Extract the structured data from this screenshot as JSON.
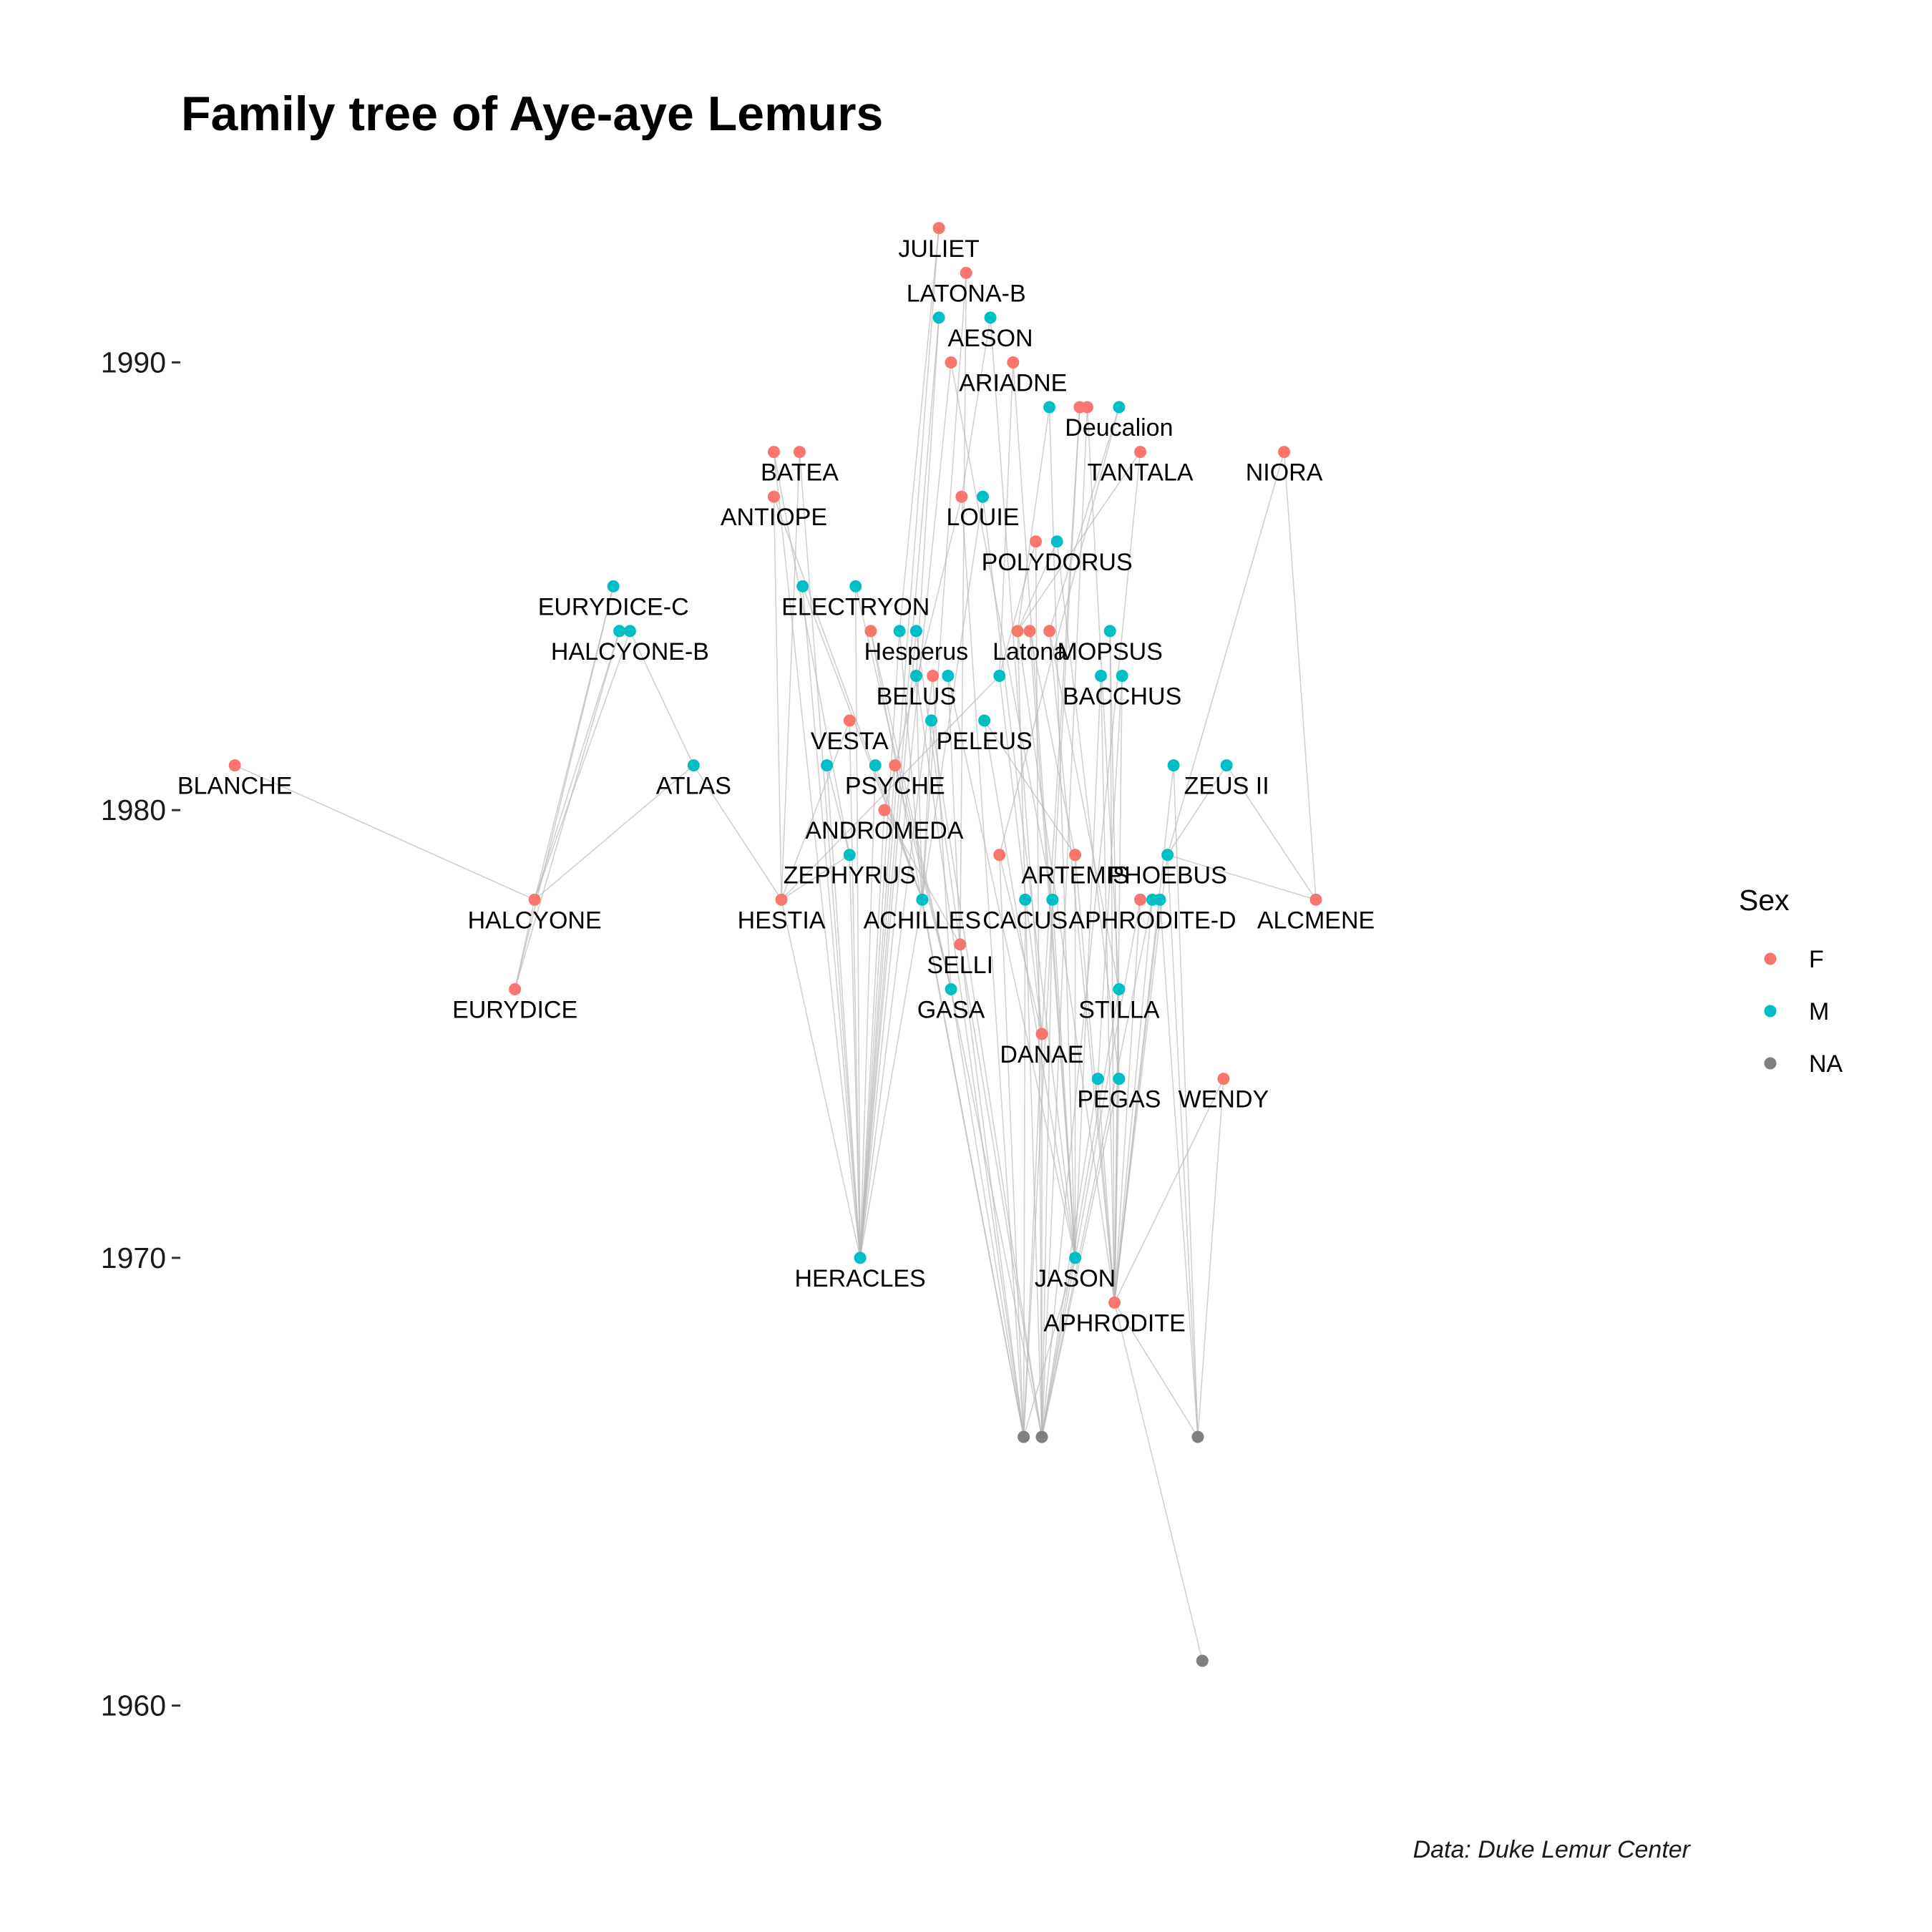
{
  "colors": {
    "F": "#F8766D",
    "M": "#00BFC4",
    "NA": "#7F7F7F"
  },
  "chart_data": {
    "type": "scatter",
    "title": "Family tree of Aye-aye Lemurs",
    "caption": "Data: Duke Lemur Center",
    "ylabel": "",
    "ylim": [
      1957.5,
      1993.3
    ],
    "xlim": [
      0,
      100
    ],
    "y_ticks": [
      1960,
      1970,
      1980,
      1990
    ],
    "legend": {
      "title": "Sex",
      "position": "right",
      "entries": [
        "F",
        "M",
        "NA"
      ]
    },
    "grid": false,
    "nodes": [
      {
        "id": "JULIET",
        "label": "JULIET",
        "sex": "F",
        "x": 50.1,
        "y": 1993
      },
      {
        "id": "LATONA-B",
        "label": "LATONA-B",
        "sex": "F",
        "x": 51.9,
        "y": 1992
      },
      {
        "id": "n_l1",
        "label": "",
        "sex": "M",
        "x": 50.1,
        "y": 1991
      },
      {
        "id": "AESON",
        "label": "AESON",
        "sex": "M",
        "x": 53.5,
        "y": 1991
      },
      {
        "id": "n_a1",
        "label": "",
        "sex": "F",
        "x": 50.9,
        "y": 1990
      },
      {
        "id": "ARIADNE",
        "label": "ARIADNE",
        "sex": "F",
        "x": 55.0,
        "y": 1990
      },
      {
        "id": "n_d1",
        "label": "",
        "sex": "M",
        "x": 57.4,
        "y": 1989
      },
      {
        "id": "n_d2",
        "label": "",
        "sex": "F",
        "x": 59.4,
        "y": 1989
      },
      {
        "id": "n_d3",
        "label": "",
        "sex": "F",
        "x": 59.9,
        "y": 1989
      },
      {
        "id": "Deucalion",
        "label": "Deucalion",
        "sex": "M",
        "x": 62.0,
        "y": 1989
      },
      {
        "id": "n_b1",
        "label": "",
        "sex": "F",
        "x": 39.2,
        "y": 1988
      },
      {
        "id": "BATEA",
        "label": "BATEA",
        "sex": "F",
        "x": 40.9,
        "y": 1988
      },
      {
        "id": "TANTALA",
        "label": "TANTALA",
        "sex": "F",
        "x": 63.4,
        "y": 1988
      },
      {
        "id": "NIORA",
        "label": "NIORA",
        "sex": "F",
        "x": 72.9,
        "y": 1988
      },
      {
        "id": "ANTIOPE",
        "label": "ANTIOPE",
        "sex": "F",
        "x": 39.2,
        "y": 1987
      },
      {
        "id": "n_lo1",
        "label": "",
        "sex": "F",
        "x": 51.6,
        "y": 1987
      },
      {
        "id": "LOUIE",
        "label": "LOUIE",
        "sex": "M",
        "x": 53.0,
        "y": 1987
      },
      {
        "id": "n_p1",
        "label": "",
        "sex": "F",
        "x": 56.5,
        "y": 1986
      },
      {
        "id": "POLYDORUS",
        "label": "POLYDORUS",
        "sex": "M",
        "x": 57.9,
        "y": 1986
      },
      {
        "id": "EURYDICE-C",
        "label": "EURYDICE-C",
        "sex": "M",
        "x": 28.6,
        "y": 1985
      },
      {
        "id": "n_e1",
        "label": "",
        "sex": "M",
        "x": 41.1,
        "y": 1985
      },
      {
        "id": "ELECTRYON",
        "label": "ELECTRYON",
        "sex": "M",
        "x": 44.6,
        "y": 1985
      },
      {
        "id": "n_h1",
        "label": "",
        "sex": "M",
        "x": 29.0,
        "y": 1984
      },
      {
        "id": "HALCYONE-B",
        "label": "HALCYONE-B",
        "sex": "M",
        "x": 29.7,
        "y": 1984
      },
      {
        "id": "n_he1",
        "label": "",
        "sex": "F",
        "x": 45.6,
        "y": 1984
      },
      {
        "id": "n_he2",
        "label": "",
        "sex": "M",
        "x": 47.5,
        "y": 1984
      },
      {
        "id": "Hesperus",
        "label": "Hesperus",
        "sex": "M",
        "x": 48.6,
        "y": 1984
      },
      {
        "id": "n_la1",
        "label": "",
        "sex": "F",
        "x": 55.3,
        "y": 1984
      },
      {
        "id": "Latona",
        "label": "Latona",
        "sex": "F",
        "x": 56.1,
        "y": 1984
      },
      {
        "id": "n_la2",
        "label": "",
        "sex": "F",
        "x": 57.4,
        "y": 1984
      },
      {
        "id": "MOPSUS",
        "label": "MOPSUS",
        "sex": "M",
        "x": 61.4,
        "y": 1984
      },
      {
        "id": "BELUS",
        "label": "BELUS",
        "sex": "M",
        "x": 48.6,
        "y": 1983
      },
      {
        "id": "n_be1",
        "label": "",
        "sex": "F",
        "x": 49.7,
        "y": 1983
      },
      {
        "id": "n_be2",
        "label": "",
        "sex": "M",
        "x": 50.7,
        "y": 1983
      },
      {
        "id": "n_pe0",
        "label": "",
        "sex": "M",
        "x": 54.1,
        "y": 1983
      },
      {
        "id": "n_ba1",
        "label": "",
        "sex": "M",
        "x": 60.8,
        "y": 1983
      },
      {
        "id": "BACCHUS",
        "label": "BACCHUS",
        "sex": "M",
        "x": 62.2,
        "y": 1983
      },
      {
        "id": "VESTA",
        "label": "VESTA",
        "sex": "F",
        "x": 44.2,
        "y": 1982
      },
      {
        "id": "n_pe1",
        "label": "",
        "sex": "M",
        "x": 49.6,
        "y": 1982
      },
      {
        "id": "PELEUS",
        "label": "PELEUS",
        "sex": "M",
        "x": 53.1,
        "y": 1982
      },
      {
        "id": "BLANCHE",
        "label": "BLANCHE",
        "sex": "F",
        "x": 3.6,
        "y": 1981
      },
      {
        "id": "ATLAS",
        "label": "ATLAS",
        "sex": "M",
        "x": 33.9,
        "y": 1981
      },
      {
        "id": "n_ps1",
        "label": "",
        "sex": "M",
        "x": 42.7,
        "y": 1981
      },
      {
        "id": "n_ps2",
        "label": "",
        "sex": "M",
        "x": 45.9,
        "y": 1981
      },
      {
        "id": "PSYCHE",
        "label": "PSYCHE",
        "sex": "F",
        "x": 47.2,
        "y": 1981
      },
      {
        "id": "n_z1",
        "label": "",
        "sex": "M",
        "x": 65.6,
        "y": 1981
      },
      {
        "id": "ZEUS II",
        "label": "ZEUS II",
        "sex": "M",
        "x": 69.1,
        "y": 1981
      },
      {
        "id": "ANDROMEDA",
        "label": "ANDROMEDA",
        "sex": "F",
        "x": 46.5,
        "y": 1980
      },
      {
        "id": "ZEPHYRUS",
        "label": "ZEPHYRUS",
        "sex": "M",
        "x": 44.2,
        "y": 1979
      },
      {
        "id": "n_ar1",
        "label": "",
        "sex": "F",
        "x": 54.1,
        "y": 1979
      },
      {
        "id": "ARTEMIS",
        "label": "ARTEMIS",
        "sex": "F",
        "x": 59.1,
        "y": 1979
      },
      {
        "id": "PHOEBUS",
        "label": "PHOEBUS",
        "sex": "M",
        "x": 65.2,
        "y": 1979
      },
      {
        "id": "HALCYONE",
        "label": "HALCYONE",
        "sex": "F",
        "x": 23.4,
        "y": 1978
      },
      {
        "id": "HESTIA",
        "label": "HESTIA",
        "sex": "F",
        "x": 39.7,
        "y": 1978
      },
      {
        "id": "ACHILLES",
        "label": "ACHILLES",
        "sex": "M",
        "x": 49.0,
        "y": 1978
      },
      {
        "id": "CACUS",
        "label": "CACUS",
        "sex": "M",
        "x": 55.8,
        "y": 1978
      },
      {
        "id": "n_ca1",
        "label": "",
        "sex": "M",
        "x": 57.6,
        "y": 1978
      },
      {
        "id": "n_ap1",
        "label": "",
        "sex": "F",
        "x": 63.4,
        "y": 1978
      },
      {
        "id": "APHRODITE-D",
        "label": "APHRODITE-D",
        "sex": "M",
        "x": 64.2,
        "y": 1978
      },
      {
        "id": "n_ap2",
        "label": "",
        "sex": "M",
        "x": 64.7,
        "y": 1978
      },
      {
        "id": "ALCMENE",
        "label": "ALCMENE",
        "sex": "F",
        "x": 75.0,
        "y": 1978
      },
      {
        "id": "SELLI",
        "label": "SELLI",
        "sex": "F",
        "x": 51.5,
        "y": 1977
      },
      {
        "id": "EURYDICE",
        "label": "EURYDICE",
        "sex": "F",
        "x": 22.1,
        "y": 1976
      },
      {
        "id": "GASA",
        "label": "GASA",
        "sex": "M",
        "x": 50.9,
        "y": 1976
      },
      {
        "id": "STILLA",
        "label": "STILLA",
        "sex": "M",
        "x": 62.0,
        "y": 1976
      },
      {
        "id": "DANAE",
        "label": "DANAE",
        "sex": "F",
        "x": 56.9,
        "y": 1975
      },
      {
        "id": "n_pg1",
        "label": "",
        "sex": "M",
        "x": 60.6,
        "y": 1974
      },
      {
        "id": "PEGAS",
        "label": "PEGAS",
        "sex": "M",
        "x": 62.0,
        "y": 1974
      },
      {
        "id": "WENDY",
        "label": "WENDY",
        "sex": "F",
        "x": 68.9,
        "y": 1974
      },
      {
        "id": "HERACLES",
        "label": "HERACLES",
        "sex": "M",
        "x": 44.9,
        "y": 1970
      },
      {
        "id": "JASON",
        "label": "JASON",
        "sex": "M",
        "x": 59.1,
        "y": 1970
      },
      {
        "id": "APHRODITE",
        "label": "APHRODITE",
        "sex": "F",
        "x": 61.7,
        "y": 1969
      },
      {
        "id": "n_na1",
        "label": "",
        "sex": "NA",
        "x": 55.7,
        "y": 1966
      },
      {
        "id": "n_na2",
        "label": "",
        "sex": "NA",
        "x": 56.9,
        "y": 1966
      },
      {
        "id": "n_na3",
        "label": "",
        "sex": "NA",
        "x": 67.2,
        "y": 1966
      },
      {
        "id": "n_na4",
        "label": "",
        "sex": "NA",
        "x": 67.5,
        "y": 1961
      }
    ],
    "edges": [
      [
        "JULIET",
        "HERACLES"
      ],
      [
        "JULIET",
        "n_he2"
      ],
      [
        "LATONA-B",
        "SELLI"
      ],
      [
        "LATONA-B",
        "ACHILLES"
      ],
      [
        "n_l1",
        "HERACLES"
      ],
      [
        "n_l1",
        "BELUS"
      ],
      [
        "AESON",
        "DANAE"
      ],
      [
        "AESON",
        "n_lo1"
      ],
      [
        "n_a1",
        "HERACLES"
      ],
      [
        "n_a1",
        "n_ca1"
      ],
      [
        "ARIADNE",
        "JASON"
      ],
      [
        "ARIADNE",
        "n_pe0"
      ],
      [
        "n_d1",
        "JASON"
      ],
      [
        "n_d1",
        "n_la1"
      ],
      [
        "n_d2",
        "n_na1"
      ],
      [
        "n_d2",
        "DANAE"
      ],
      [
        "n_d3",
        "n_na2"
      ],
      [
        "n_d3",
        "STILLA"
      ],
      [
        "Deucalion",
        "n_la2"
      ],
      [
        "Deucalion",
        "n_ar1"
      ],
      [
        "n_b1",
        "HERACLES"
      ],
      [
        "n_b1",
        "ZEPHYRUS"
      ],
      [
        "BATEA",
        "HERACLES"
      ],
      [
        "BATEA",
        "HESTIA"
      ],
      [
        "TANTALA",
        "n_na2"
      ],
      [
        "TANTALA",
        "n_la1"
      ],
      [
        "NIORA",
        "ALCMENE"
      ],
      [
        "NIORA",
        "PHOEBUS"
      ],
      [
        "ANTIOPE",
        "HESTIA"
      ],
      [
        "ANTIOPE",
        "ACHILLES"
      ],
      [
        "n_lo1",
        "n_na1"
      ],
      [
        "n_lo1",
        "ANDROMEDA"
      ],
      [
        "LOUIE",
        "JASON"
      ],
      [
        "LOUIE",
        "ACHILLES"
      ],
      [
        "n_p1",
        "n_na2"
      ],
      [
        "n_p1",
        "n_pe0"
      ],
      [
        "POLYDORUS",
        "PEGAS"
      ],
      [
        "POLYDORUS",
        "n_la1"
      ],
      [
        "EURYDICE-C",
        "HALCYONE"
      ],
      [
        "EURYDICE-C",
        "EURYDICE"
      ],
      [
        "n_e1",
        "HERACLES"
      ],
      [
        "n_e1",
        "ACHILLES"
      ],
      [
        "ELECTRYON",
        "HERACLES"
      ],
      [
        "ELECTRYON",
        "GASA"
      ],
      [
        "n_h1",
        "HALCYONE"
      ],
      [
        "n_h1",
        "EURYDICE"
      ],
      [
        "HALCYONE-B",
        "HALCYONE"
      ],
      [
        "HALCYONE-B",
        "ATLAS"
      ],
      [
        "n_he1",
        "n_na1"
      ],
      [
        "n_he1",
        "GASA"
      ],
      [
        "n_he2",
        "HERACLES"
      ],
      [
        "n_he2",
        "ACHILLES"
      ],
      [
        "Hesperus",
        "SELLI"
      ],
      [
        "Hesperus",
        "HERACLES"
      ],
      [
        "n_la1",
        "APHRODITE"
      ],
      [
        "n_la1",
        "CACUS"
      ],
      [
        "Latona",
        "JASON"
      ],
      [
        "Latona",
        "ARTEMIS"
      ],
      [
        "n_la2",
        "APHRODITE"
      ],
      [
        "n_la2",
        "STILLA"
      ],
      [
        "MOPSUS",
        "PEGAS"
      ],
      [
        "MOPSUS",
        "APHRODITE"
      ],
      [
        "BELUS",
        "n_na1"
      ],
      [
        "BELUS",
        "ACHILLES"
      ],
      [
        "n_be1",
        "GASA"
      ],
      [
        "n_be1",
        "HERACLES"
      ],
      [
        "n_be2",
        "JASON"
      ],
      [
        "n_be2",
        "SELLI"
      ],
      [
        "n_pe0",
        "DANAE"
      ],
      [
        "n_pe0",
        "HESTIA"
      ],
      [
        "n_ba1",
        "APHRODITE"
      ],
      [
        "n_ba1",
        "JASON"
      ],
      [
        "BACCHUS",
        "APHRODITE"
      ],
      [
        "BACCHUS",
        "n_pg1"
      ],
      [
        "VESTA",
        "HERACLES"
      ],
      [
        "VESTA",
        "HESTIA"
      ],
      [
        "n_pe1",
        "n_na2"
      ],
      [
        "n_pe1",
        "ACHILLES"
      ],
      [
        "PELEUS",
        "JASON"
      ],
      [
        "PELEUS",
        "ARTEMIS"
      ],
      [
        "BLANCHE",
        "HALCYONE"
      ],
      [
        "ATLAS",
        "HESTIA"
      ],
      [
        "ATLAS",
        "HALCYONE"
      ],
      [
        "n_ps1",
        "HERACLES"
      ],
      [
        "n_ps1",
        "ZEPHYRUS"
      ],
      [
        "n_ps2",
        "ACHILLES"
      ],
      [
        "n_ps2",
        "HERACLES"
      ],
      [
        "PSYCHE",
        "HERACLES"
      ],
      [
        "PSYCHE",
        "GASA"
      ],
      [
        "n_z1",
        "n_na3"
      ],
      [
        "n_z1",
        "APHRODITE"
      ],
      [
        "ZEUS II",
        "PHOEBUS"
      ],
      [
        "ZEUS II",
        "ALCMENE"
      ],
      [
        "ANDROMEDA",
        "HERACLES"
      ],
      [
        "ANDROMEDA",
        "SELLI"
      ],
      [
        "ZEPHYRUS",
        "HERACLES"
      ],
      [
        "ZEPHYRUS",
        "HESTIA"
      ],
      [
        "n_ar1",
        "n_na1"
      ],
      [
        "n_ar1",
        "DANAE"
      ],
      [
        "ARTEMIS",
        "APHRODITE"
      ],
      [
        "ARTEMIS",
        "JASON"
      ],
      [
        "PHOEBUS",
        "APHRODITE"
      ],
      [
        "PHOEBUS",
        "n_na3"
      ],
      [
        "HALCYONE",
        "EURYDICE"
      ],
      [
        "HESTIA",
        "HERACLES"
      ],
      [
        "ACHILLES",
        "HERACLES"
      ],
      [
        "ACHILLES",
        "n_na1"
      ],
      [
        "CACUS",
        "n_na1"
      ],
      [
        "CACUS",
        "n_na2"
      ],
      [
        "n_ca1",
        "n_na2"
      ],
      [
        "n_ca1",
        "JASON"
      ],
      [
        "n_ap1",
        "APHRODITE"
      ],
      [
        "n_ap1",
        "JASON"
      ],
      [
        "APHRODITE-D",
        "APHRODITE"
      ],
      [
        "APHRODITE-D",
        "n_na2"
      ],
      [
        "n_ap2",
        "APHRODITE"
      ],
      [
        "n_ap2",
        "n_na3"
      ],
      [
        "ALCMENE",
        "PHOEBUS"
      ],
      [
        "SELLI",
        "n_na1"
      ],
      [
        "SELLI",
        "n_na2"
      ],
      [
        "GASA",
        "n_na1"
      ],
      [
        "GASA",
        "n_na2"
      ],
      [
        "STILLA",
        "n_na2"
      ],
      [
        "STILLA",
        "APHRODITE"
      ],
      [
        "DANAE",
        "n_na1"
      ],
      [
        "DANAE",
        "n_na2"
      ],
      [
        "n_pg1",
        "n_na2"
      ],
      [
        "n_pg1",
        "APHRODITE"
      ],
      [
        "PEGAS",
        "n_na2"
      ],
      [
        "PEGAS",
        "APHRODITE"
      ],
      [
        "WENDY",
        "n_na3"
      ],
      [
        "WENDY",
        "APHRODITE"
      ],
      [
        "JASON",
        "n_na1"
      ],
      [
        "JASON",
        "n_na2"
      ],
      [
        "APHRODITE",
        "n_na4"
      ],
      [
        "APHRODITE",
        "n_na3"
      ]
    ]
  }
}
